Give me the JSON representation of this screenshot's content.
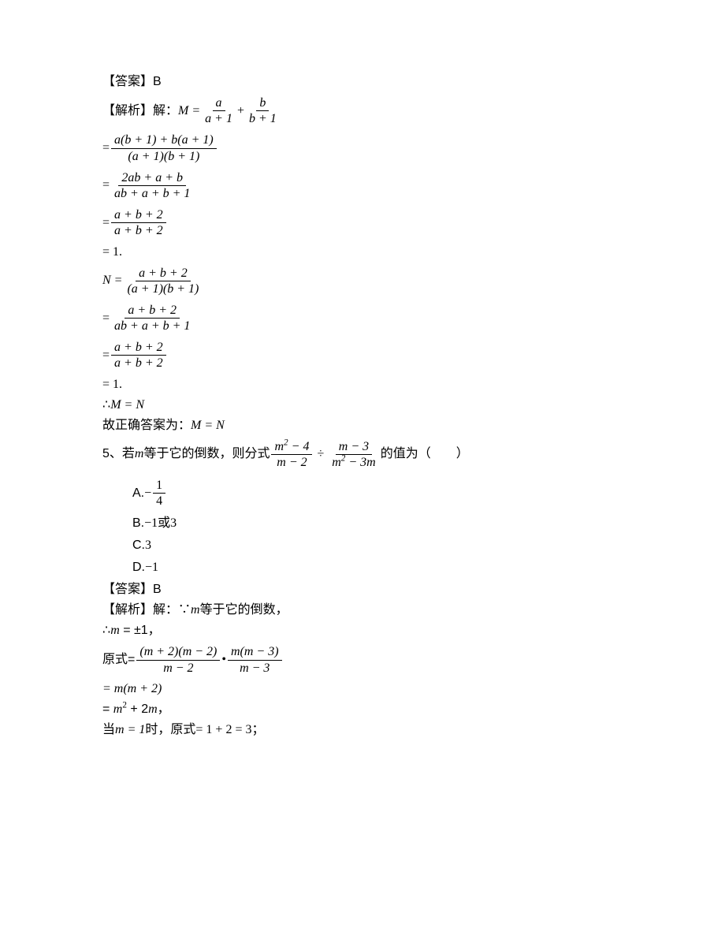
{
  "answer_label_prefix": "【答案】",
  "answer4": "B",
  "analysis_label": "【解析】解：",
  "M_eq": "M =",
  "step4_1_f1_num": "a",
  "step4_1_f1_den": "a + 1",
  "step4_1_plus": "+",
  "step4_1_f2_num": "b",
  "step4_1_f2_den": "b + 1",
  "step4_2_eq": "=",
  "step4_2_num": "a(b + 1) + b(a + 1)",
  "step4_2_den": "(a + 1)(b + 1)",
  "step4_3_num": "2ab + a + b",
  "step4_3_den": "ab + a + b + 1",
  "step4_4_num": "a + b + 2",
  "step4_4_den": "a + b + 2",
  "step4_5": "= 1.",
  "N_eq": "N =",
  "step4_6_num": "a + b + 2",
  "step4_6_den": "(a + 1)(b + 1)",
  "step4_7_num": "a + b + 2",
  "step4_7_den": "ab + a + b + 1",
  "step4_8_num": "a + b + 2",
  "step4_8_den": "a + b + 2",
  "step4_9": "= 1.",
  "therefore": "∴",
  "M_equals_N": "M = N",
  "conclusion4_prefix": "故正确答案为：",
  "q5_prefix": "5、若",
  "q5_m": "m",
  "q5_text1": "等于它的倒数，则分式",
  "q5_f1_num_html": "m<span class='sup'>2</span> − 4",
  "q5_f1_den": "m − 2",
  "q5_div": "÷",
  "q5_f2_num": "m − 3",
  "q5_f2_den_html": "m<span class='sup'>2</span> − 3m",
  "q5_text2": "的值为（　　）",
  "opt_a_label": "A. ",
  "opt_a_neg": "−",
  "opt_a_num": "1",
  "opt_a_den": "4",
  "opt_b_label": "B. ",
  "opt_b_text_html": "<span class='mathup'>−1</span>或<span class='mathup'>3</span>",
  "opt_c_label": "C. ",
  "opt_c_text": "3",
  "opt_d_label": "D. ",
  "opt_d_text": "−1",
  "answer5": "B",
  "analysis5_text1": "解：∵",
  "analysis5_text2": "等于它的倒数，",
  "analysis5_line2_html": "∴<span class='math'>m</span> = ±1，",
  "orig_prefix": "原式=",
  "step5_1_f1_num": "(m + 2)(m − 2)",
  "step5_1_f1_den": "m − 2",
  "step5_1_dot": "•",
  "step5_1_f2_num": "m(m − 3)",
  "step5_1_f2_den": "m − 3",
  "step5_2": "= m(m + 2)",
  "step5_3_html": "= <span class='math'>m</span><span class='sup mathup'>2</span> + 2<span class='math'>m</span>，",
  "when_prefix": "当",
  "when_m1": "m = 1",
  "when_suffix": "时，原式",
  "when_result": "= 1 + 2 = 3",
  "when_semi": "；"
}
